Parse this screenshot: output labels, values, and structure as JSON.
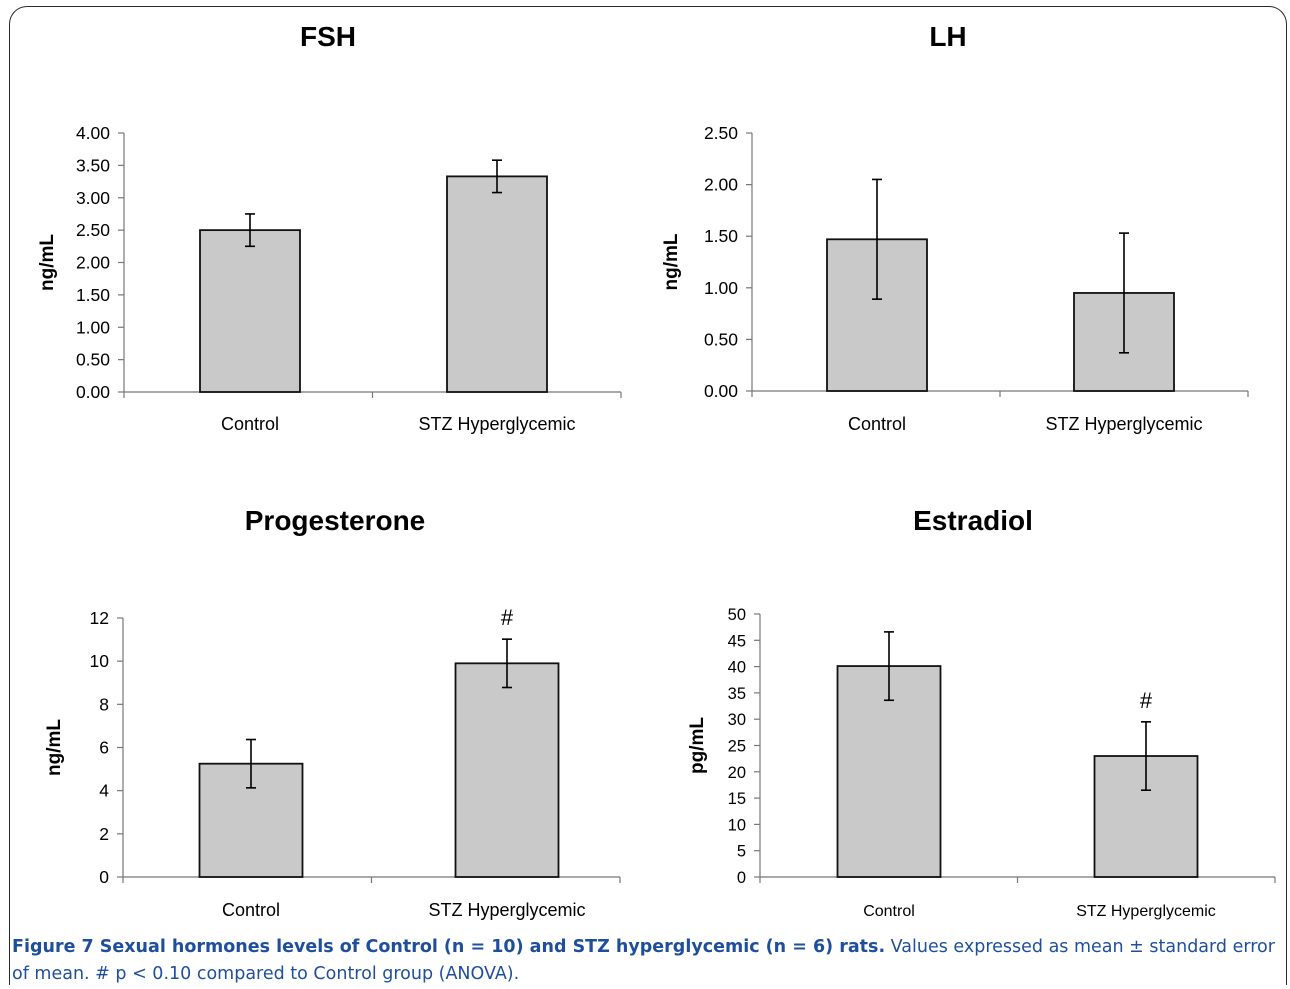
{
  "chart_data": [
    {
      "type": "bar",
      "title": "FSH",
      "ylabel": "ng/mL",
      "categories": [
        "Control",
        "STZ Hyperglycemic"
      ],
      "values": [
        2.5,
        3.33
      ],
      "errors": [
        0.25,
        0.25
      ],
      "ylim": [
        0,
        4
      ],
      "yticks": [
        "0.00",
        "0.50",
        "1.00",
        "1.50",
        "2.00",
        "2.50",
        "3.00",
        "3.50",
        "4.00"
      ],
      "annotations": [
        "",
        ""
      ]
    },
    {
      "type": "bar",
      "title": "LH",
      "ylabel": "ng/mL",
      "categories": [
        "Control",
        "STZ Hyperglycemic"
      ],
      "values": [
        1.47,
        0.95
      ],
      "errors": [
        0.58,
        0.58
      ],
      "ylim": [
        0,
        2.5
      ],
      "yticks": [
        "0.00",
        "0.50",
        "1.00",
        "1.50",
        "2.00",
        "2.50"
      ],
      "annotations": [
        "",
        ""
      ]
    },
    {
      "type": "bar",
      "title": "Progesterone",
      "ylabel": "ng/mL",
      "categories": [
        "Control",
        "STZ Hyperglycemic"
      ],
      "values": [
        5.25,
        9.9
      ],
      "errors": [
        1.12,
        1.12
      ],
      "ylim": [
        0,
        12
      ],
      "yticks": [
        "0",
        "2",
        "4",
        "6",
        "8",
        "10",
        "12"
      ],
      "annotations": [
        "",
        "#"
      ]
    },
    {
      "type": "bar",
      "title": "Estradiol",
      "ylabel": "pg/mL",
      "categories": [
        "Control",
        "STZ Hyperglycemic"
      ],
      "values": [
        40.1,
        23.0
      ],
      "errors": [
        6.5,
        6.5
      ],
      "ylim": [
        0,
        50
      ],
      "yticks": [
        "0",
        "5",
        "10",
        "15",
        "20",
        "25",
        "30",
        "35",
        "40",
        "45",
        "50"
      ],
      "annotations": [
        "",
        "#"
      ]
    }
  ],
  "caption": {
    "bold": "Figure 7 Sexual hormones levels of Control (n = 10) and STZ hyperglycemic (n = 6) rats.",
    "rest": " Values expressed as mean ± standard error of mean. # p < 0.10 compared to Control group (ANOVA)."
  },
  "colors": {
    "bar_fill": "#c9c9c9",
    "bar_stroke": "#111111",
    "axis": "#777777",
    "caption": "#1f4f9c"
  }
}
